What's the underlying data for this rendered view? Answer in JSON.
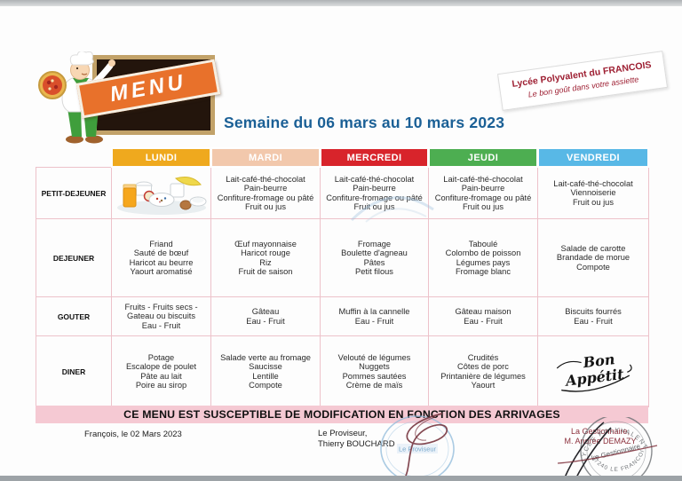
{
  "branding": {
    "menu_label": "MENU",
    "badge_title": "Lycée Polyvalent du FRANCOIS",
    "badge_subtitle": "Le bon goût dans votre assiette"
  },
  "title": "Semaine du 06 mars au 10 mars 2023",
  "table": {
    "days": [
      {
        "label": "LUNDI",
        "color": "#EFA91E",
        "text_color": "#FFFFFF"
      },
      {
        "label": "MARDI",
        "color": "#F2C8AC",
        "text_color": "#FFFFFF"
      },
      {
        "label": "MERCREDI",
        "color": "#D8242B",
        "text_color": "#FFFFFF"
      },
      {
        "label": "JEUDI",
        "color": "#4DAE51",
        "text_color": "#FFFFFF"
      },
      {
        "label": "VENDREDI",
        "color": "#58B8E6",
        "text_color": "#FFFFFF"
      }
    ],
    "rows": [
      {
        "label": "PETIT-DEJEUNER",
        "cells": [
          {
            "type": "image",
            "name": "breakfast-photo"
          },
          {
            "lines": [
              "Lait-café-thé-chocolat",
              "Pain-beurre",
              "Confiture-fromage ou pâté",
              "Fruit ou jus"
            ]
          },
          {
            "lines": [
              "Lait-café-thé-chocolat",
              "Pain-beurre",
              "Confiture-fromage ou pâté",
              "Fruit ou jus"
            ]
          },
          {
            "lines": [
              "Lait-café-thé-chocolat",
              "Pain-beurre",
              "Confiture-fromage ou pâté",
              "Fruit ou jus"
            ]
          },
          {
            "lines": [
              "Lait-café-thé-chocolat",
              "Viennoiserie",
              "Fruit ou jus"
            ]
          }
        ]
      },
      {
        "label": "DEJEUNER",
        "cells": [
          {
            "lines": [
              "Friand",
              "Sauté de bœuf",
              "Haricot au beurre",
              "Yaourt aromatisé"
            ]
          },
          {
            "lines": [
              "Œuf mayonnaise",
              "Haricot rouge",
              "Riz",
              "Fruit de saison"
            ]
          },
          {
            "lines": [
              "Fromage",
              "Boulette d'agneau",
              "Pâtes",
              "Petit filous"
            ]
          },
          {
            "lines": [
              "Taboulé",
              "Colombo de poisson",
              "Légumes pays",
              "Fromage blanc"
            ]
          },
          {
            "lines": [
              "Salade de carotte",
              "Brandade de morue",
              "Compote"
            ]
          }
        ]
      },
      {
        "label": "GOUTER",
        "cells": [
          {
            "lines": [
              "Fruits - Fruits secs - Gateau ou biscuits",
              "Eau - Fruit"
            ]
          },
          {
            "lines": [
              "Gâteau",
              "Eau - Fruit"
            ]
          },
          {
            "lines": [
              "Muffin à la cannelle",
              "Eau - Fruit"
            ]
          },
          {
            "lines": [
              "Gâteau maison",
              "Eau - Fruit"
            ]
          },
          {
            "lines": [
              "Biscuits fourrés",
              "Eau - Fruit"
            ]
          }
        ]
      },
      {
        "label": "DINER",
        "cells": [
          {
            "lines": [
              "Potage",
              "Escalope de poulet",
              "Pâte au lait",
              "Poire au sirop"
            ]
          },
          {
            "lines": [
              "Salade verte au fromage",
              "Saucisse",
              "Lentille",
              "Compote"
            ]
          },
          {
            "lines": [
              "Velouté de légumes",
              "Nuggets",
              "Pommes sautées",
              "Crème de maïs"
            ]
          },
          {
            "lines": [
              "Crudités",
              "Côtes de porc",
              "Printanière de légumes",
              "Yaourt"
            ]
          },
          {
            "type": "script",
            "lines": [
              "Bon",
              "Appétit"
            ]
          }
        ]
      }
    ]
  },
  "notice": "CE MENU EST SUSCEPTIBLE DE MODIFICATION EN FONCTION DES ARRIVAGES",
  "footer": {
    "place_date": "François, le 02 Mars 2023",
    "principal_title": "Le Proviseur,",
    "principal_name": "Thierry BOUCHARD",
    "principal_stamp_label": "Le Proviseur",
    "manager_title": "La Gestionnaire,",
    "manager_name": "M. Andrée DEMAZY",
    "manager_stamp_arc_top": "LYCÉE POLYVALENT",
    "manager_stamp_middle": "Le Gestionnaire",
    "manager_stamp_arc_bottom": "97240 LE FRANCOIS"
  }
}
